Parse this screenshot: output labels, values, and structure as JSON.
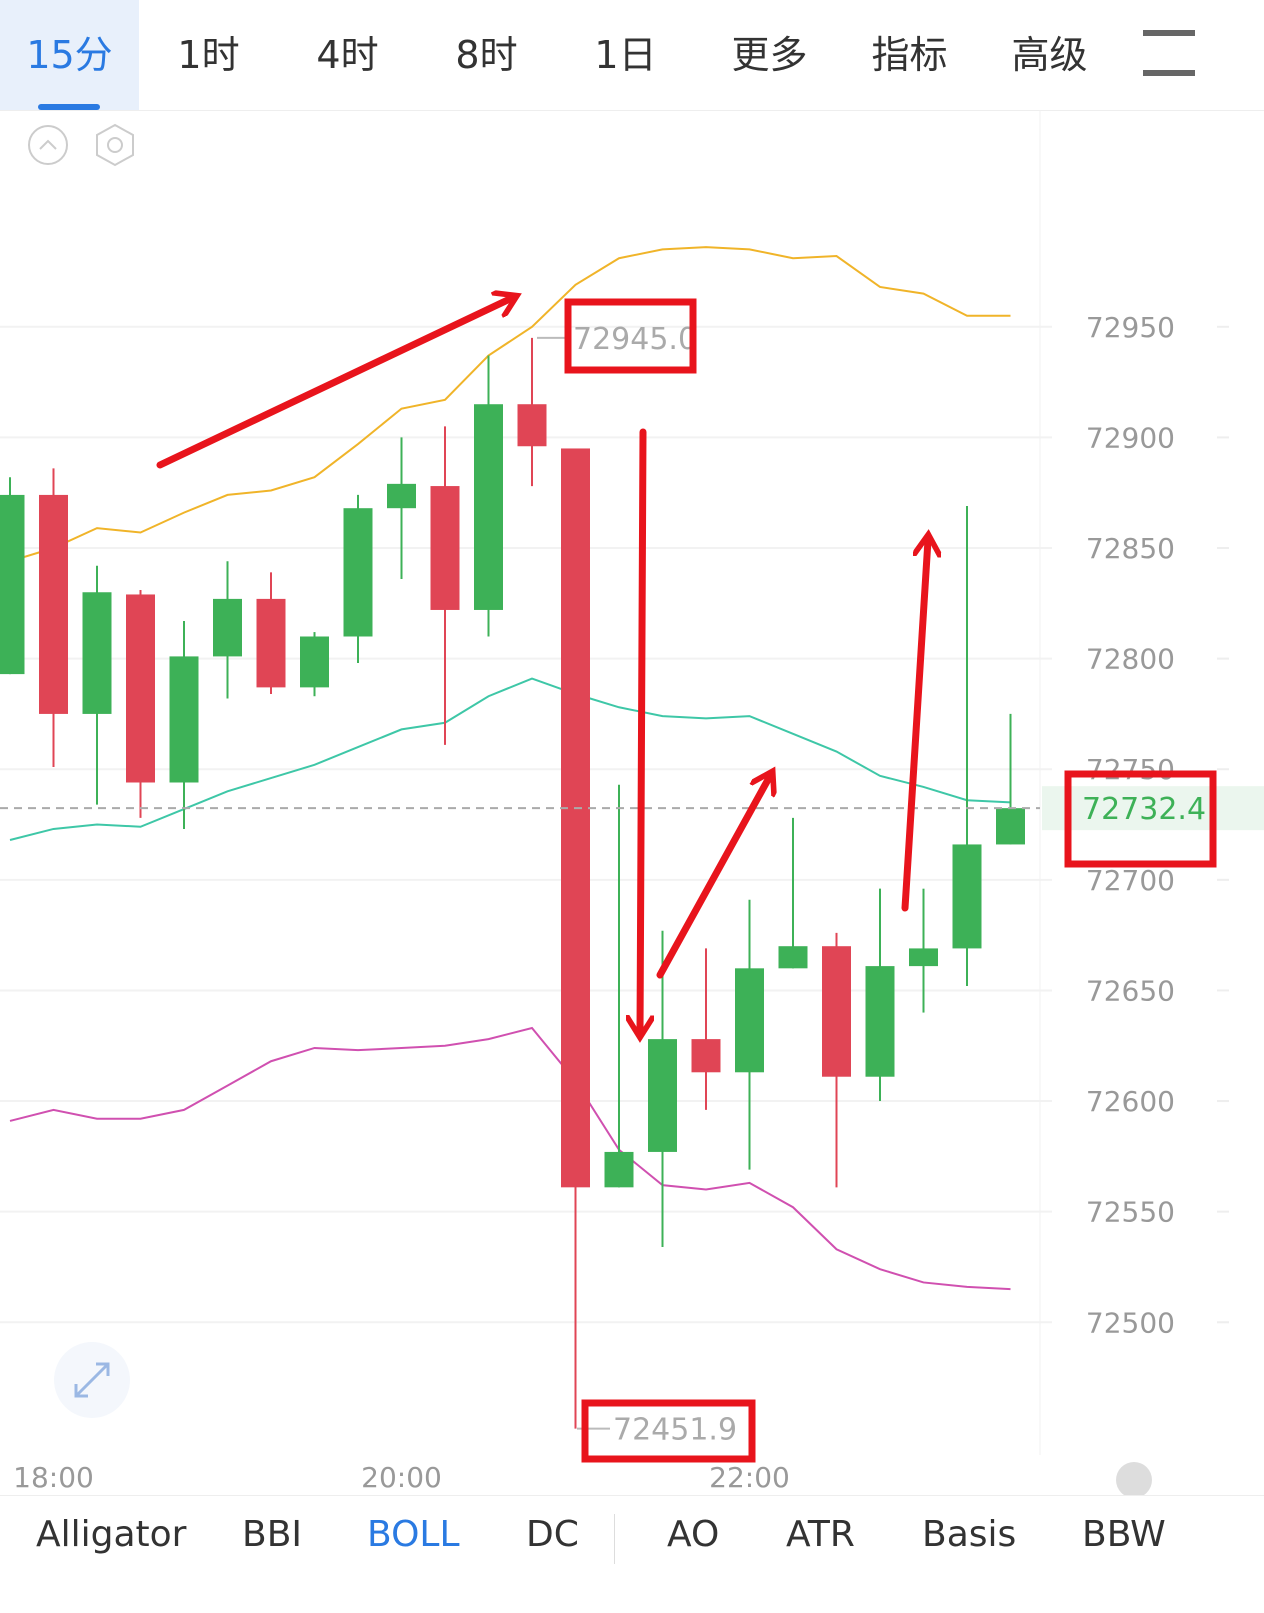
{
  "tabs": [
    "15分",
    "1时",
    "4时",
    "8时",
    "1日",
    "更多",
    "指标",
    "高级"
  ],
  "indicator_tabs": [
    "Alligator",
    "BBI",
    "BOLL",
    "DC",
    "AO",
    "ATR",
    "Basis",
    "BBW"
  ],
  "chart_data": {
    "type": "candlestick",
    "categories": [
      null,
      "18:00",
      null,
      null,
      null,
      null,
      null,
      null,
      null,
      "20:00",
      null,
      null,
      null,
      null,
      null,
      null,
      null,
      "22:00",
      null,
      null,
      null,
      null,
      null,
      null
    ],
    "open": [
      72793,
      72874,
      72775,
      72829,
      72744,
      72801,
      72827,
      72787,
      72810,
      72868,
      72878,
      72822,
      72915,
      72895,
      72561,
      72577,
      72628,
      72613,
      72660,
      72670,
      72611,
      72661,
      72669,
      72716
    ],
    "high": [
      72882,
      72886,
      72842,
      72831,
      72817,
      72844,
      72839,
      72812,
      72874,
      72900,
      72905,
      72937,
      72945,
      72895,
      72743,
      72677,
      72669,
      72691,
      72728,
      72676,
      72696,
      72696,
      72869,
      72775
    ],
    "low": [
      72793,
      72751,
      72734,
      72728,
      72723,
      72782,
      72784,
      72783,
      72798,
      72836,
      72761,
      72810,
      72878,
      72451.9,
      72561,
      72534,
      72596,
      72569,
      72660,
      72561,
      72600,
      72640,
      72652,
      72716
    ],
    "close": [
      72874,
      72775,
      72830,
      72744,
      72801,
      72827,
      72787,
      72810,
      72868,
      72879,
      72822,
      72915,
      72896,
      72561,
      72577,
      72628,
      72613,
      72660,
      72670,
      72611,
      72661,
      72669,
      72716,
      72732.4
    ],
    "up_color": "#3db157",
    "down_color": "#e04555",
    "lines": [
      {
        "color": "#f0b429",
        "values": [
          72844,
          72850,
          72859,
          72857,
          72866,
          72874,
          72876,
          72882,
          72897,
          72913,
          72917,
          72937,
          72950,
          72969,
          72981,
          72985,
          72986,
          72985,
          72981,
          72982,
          72968,
          72965,
          72955,
          72955
        ]
      },
      {
        "color": "#3ec7a7",
        "values": [
          72718,
          72723,
          72725,
          72724,
          72732,
          72740,
          72746,
          72752,
          72760,
          72768,
          72771,
          72783,
          72791,
          72784,
          72778,
          72774,
          72773,
          72774,
          72766,
          72758,
          72747,
          72742,
          72736,
          72735
        ]
      },
      {
        "color": "#d050b0",
        "values": [
          72591,
          72596,
          72592,
          72592,
          72596,
          72607,
          72618,
          72624,
          72623,
          72624,
          72625,
          72628,
          72633,
          72609,
          72578,
          72562,
          72560,
          72563,
          72552,
          72533,
          72524,
          72518,
          72516,
          72515
        ]
      }
    ],
    "ylim": [
      72440,
      73048
    ],
    "yticks": [
      72500,
      72550,
      72600,
      72650,
      72700,
      72750,
      72800,
      72850,
      72900,
      72950
    ],
    "grid": true,
    "last_price": 72732.4,
    "annotations": [
      {
        "value": 72945,
        "label": "72945.0"
      },
      {
        "value": 72451.9,
        "label": "72451.9"
      }
    ]
  }
}
